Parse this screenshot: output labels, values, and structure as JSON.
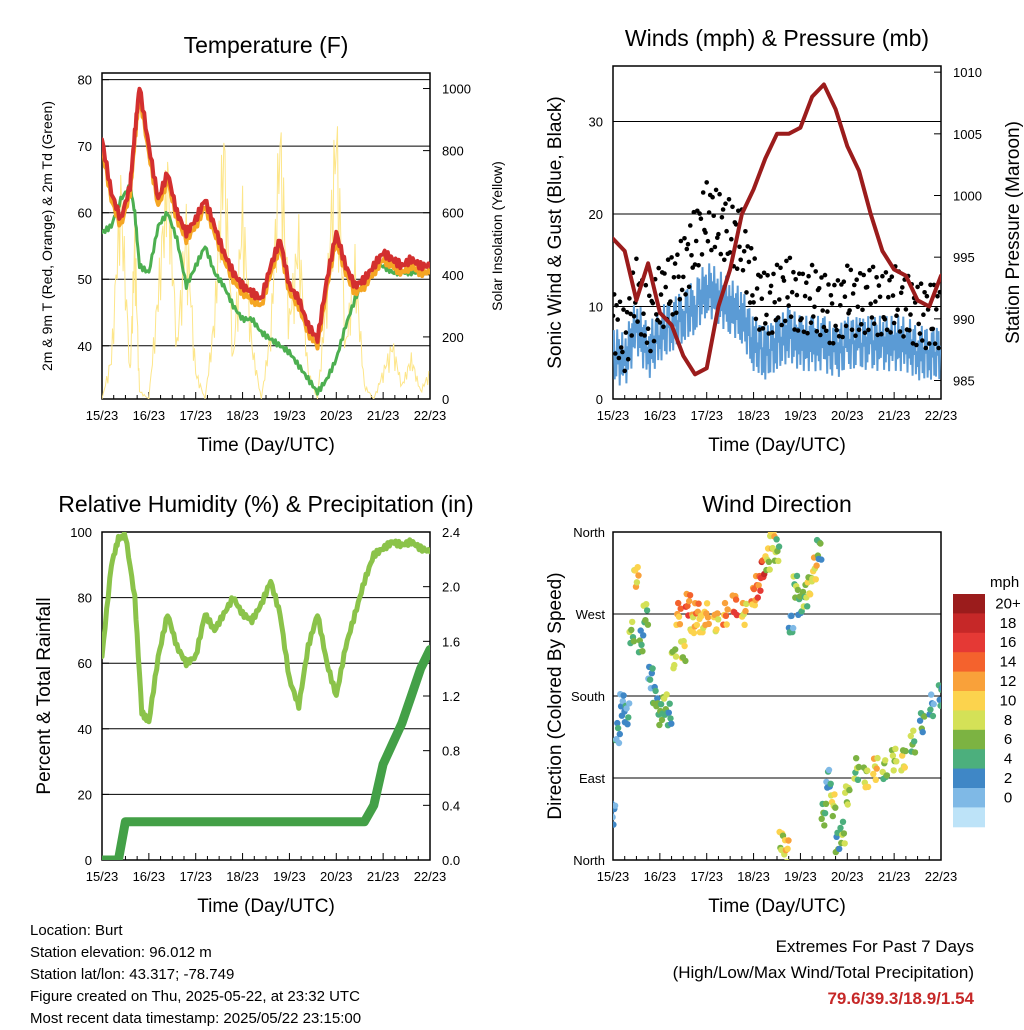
{
  "time_ticks": [
    "15/23",
    "16/23",
    "17/23",
    "18/23",
    "19/23",
    "20/23",
    "21/23",
    "22/23"
  ],
  "xlabel": "Time (Day/UTC)",
  "chart_data": [
    {
      "type": "line",
      "title": "Temperature (F)",
      "xlabel": "Time (Day/UTC)",
      "ylabel": "2m & 9m T (Red, Orange) & 2m Td (Green)",
      "ylabel_right": "Solar Insolation (Yellow)",
      "x": [
        15.0,
        15.2,
        15.4,
        15.6,
        15.7,
        15.8,
        16.0,
        16.2,
        16.4,
        16.6,
        16.8,
        17.0,
        17.2,
        17.4,
        17.6,
        17.8,
        18.0,
        18.2,
        18.4,
        18.6,
        18.8,
        19.0,
        19.2,
        19.4,
        19.6,
        19.8,
        20.0,
        20.2,
        20.4,
        20.6,
        20.8,
        21.0,
        21.2,
        21.4,
        21.6,
        21.8,
        22.0
      ],
      "ylim": [
        32,
        81
      ],
      "ylim_right": [
        0,
        1050
      ],
      "yticks": [
        40,
        50,
        60,
        70,
        80
      ],
      "yticks_right": [
        0,
        200,
        400,
        600,
        800,
        1000
      ],
      "grid": true,
      "series": [
        {
          "values": [
            71,
            63,
            59,
            64,
            72,
            79,
            70,
            62,
            66,
            60,
            57,
            59,
            62,
            58,
            54,
            51,
            49,
            48,
            47,
            52,
            56,
            49,
            47,
            43,
            41,
            50,
            57,
            52,
            49,
            50,
            52,
            54,
            53,
            52,
            53,
            52,
            52
          ],
          "color": "#d32f2f"
        },
        {
          "values": [
            70,
            62,
            58,
            63,
            71,
            78,
            69,
            61,
            65,
            59,
            56,
            58,
            61,
            57,
            53,
            50,
            48,
            47,
            46,
            51,
            55,
            48,
            46,
            42,
            40,
            49,
            56,
            51,
            48,
            49,
            51,
            53,
            52,
            51,
            52,
            51,
            51
          ],
          "color": "#f5a623"
        },
        {
          "values": [
            57,
            58,
            62,
            64,
            60,
            52,
            51,
            58,
            60,
            56,
            49,
            52,
            55,
            51,
            49,
            46,
            44,
            44,
            42,
            41,
            40,
            39,
            37,
            35,
            33,
            35,
            38,
            43,
            47,
            50,
            52,
            52,
            51,
            51,
            51,
            51,
            51
          ],
          "color": "#4caf50"
        },
        {
          "values": [
            0,
            150,
            780,
            100,
            600,
            30,
            0,
            400,
            850,
            200,
            650,
            100,
            0,
            300,
            950,
            150,
            700,
            200,
            0,
            250,
            980,
            300,
            600,
            100,
            0,
            400,
            1000,
            200,
            500,
            50,
            0,
            100,
            200,
            50,
            150,
            30,
            100
          ],
          "color": "#fde68a"
        }
      ]
    },
    {
      "type": "scatter",
      "title": "Winds (mph) & Pressure (mb)",
      "xlabel": "Time (Day/UTC)",
      "ylabel": "Sonic Wind & Gust (Blue, Black)",
      "ylabel_right": "Station Pressure (Maroon)",
      "x": [
        15.0,
        15.25,
        15.5,
        15.75,
        16.0,
        16.25,
        16.5,
        16.75,
        17.0,
        17.25,
        17.5,
        17.75,
        18.0,
        18.25,
        18.5,
        18.75,
        19.0,
        19.25,
        19.5,
        19.75,
        20.0,
        20.25,
        20.5,
        20.75,
        21.0,
        21.25,
        21.5,
        21.75,
        22.0
      ],
      "ylim": [
        0,
        36
      ],
      "ylim_right": [
        983.5,
        1010.5
      ],
      "yticks": [
        0,
        10,
        20,
        30
      ],
      "yticks_right": [
        985,
        990,
        995,
        1000,
        1005,
        1010
      ],
      "grid": true,
      "series": [
        {
          "values": [
            9,
            6,
            12,
            8,
            11,
            12,
            14,
            17,
            20,
            19,
            18,
            17,
            12,
            10,
            11,
            12,
            10,
            11,
            10,
            9,
            11,
            10,
            11,
            10,
            11,
            10,
            9,
            9,
            9
          ],
          "color": "#000000"
        },
        {
          "values": [
            5,
            4,
            8,
            5,
            7,
            8,
            9,
            10,
            12,
            11,
            10,
            9,
            6,
            5,
            6,
            7,
            6,
            6,
            6,
            5,
            6,
            6,
            6,
            6,
            6,
            6,
            5,
            5,
            5
          ],
          "color": "#5b9bd5"
        },
        {
          "values": [
            996.5,
            995.5,
            991.5,
            994.5,
            990.5,
            989.5,
            987.0,
            985.5,
            986.0,
            991.0,
            994.0,
            998.5,
            1000.5,
            1003.0,
            1005.0,
            1005.0,
            1005.5,
            1008.0,
            1009.0,
            1007.0,
            1004.0,
            1002.0,
            998.5,
            995.5,
            994.0,
            993.5,
            991.5,
            991.0,
            993.5
          ],
          "color": "#9b1c1c"
        }
      ]
    },
    {
      "type": "line",
      "title": "Relative Humidity (%) & Precipitation (in)",
      "xlabel": "Time (Day/UTC)",
      "ylabel": "Percent & Total Rainfall",
      "x": [
        15.0,
        15.2,
        15.35,
        15.5,
        15.7,
        15.85,
        16.0,
        16.2,
        16.4,
        16.6,
        16.8,
        17.0,
        17.2,
        17.4,
        17.6,
        17.8,
        18.0,
        18.2,
        18.4,
        18.6,
        18.8,
        19.0,
        19.2,
        19.4,
        19.6,
        19.8,
        20.0,
        20.2,
        20.4,
        20.6,
        20.8,
        21.0,
        21.2,
        21.4,
        21.6,
        21.8,
        22.0
      ],
      "ylim": [
        0,
        100
      ],
      "ylim_right": [
        0,
        2.4
      ],
      "yticks": [
        0,
        20,
        40,
        60,
        80,
        100
      ],
      "yticks_right": [
        0.0,
        0.4,
        0.8,
        1.2,
        1.6,
        2.0,
        2.4
      ],
      "grid": true,
      "series": [
        {
          "values": [
            62,
            90,
            98,
            99,
            80,
            45,
            42,
            62,
            75,
            65,
            60,
            62,
            75,
            70,
            75,
            80,
            75,
            73,
            78,
            85,
            75,
            55,
            47,
            65,
            75,
            60,
            50,
            65,
            75,
            85,
            93,
            95,
            97,
            96,
            97,
            95,
            94
          ],
          "color": "#8bc34a"
        },
        {
          "values": [
            0.0,
            0.0,
            0.0,
            0.28,
            0.28,
            0.28,
            0.28,
            0.28,
            0.28,
            0.28,
            0.28,
            0.28,
            0.28,
            0.28,
            0.28,
            0.28,
            0.28,
            0.28,
            0.28,
            0.28,
            0.28,
            0.28,
            0.28,
            0.28,
            0.28,
            0.28,
            0.28,
            0.28,
            0.28,
            0.28,
            0.4,
            0.7,
            0.85,
            1.0,
            1.2,
            1.4,
            1.54
          ],
          "color": "#43a047"
        }
      ]
    },
    {
      "type": "scatter",
      "title": "Wind Direction",
      "xlabel": "Time (Day/UTC)",
      "ylabel": "Direction (Colored By Speed)",
      "ytick_labels": [
        "North",
        "East",
        "South",
        "West",
        "North"
      ],
      "ytick_values": [
        0,
        90,
        180,
        270,
        360
      ],
      "ylim": [
        0,
        360
      ],
      "colorbar": {
        "title": "mph",
        "labels": [
          "20+",
          "18",
          "16",
          "14",
          "12",
          "10",
          "8",
          "6",
          "4",
          "2",
          "0"
        ],
        "colors": [
          "#9b1c1c",
          "#c62828",
          "#e53935",
          "#f4622d",
          "#f9a13a",
          "#fcd34d",
          "#d4e157",
          "#7cb342",
          "#4caf7d",
          "#3f87c6",
          "#7fb9e6",
          "#bde3f8"
        ]
      },
      "x": [
        15.0,
        15.1,
        15.2,
        15.3,
        15.4,
        15.5,
        15.6,
        15.7,
        15.8,
        15.9,
        16.0,
        16.1,
        16.2,
        16.3,
        16.4,
        16.5,
        16.6,
        16.7,
        16.8,
        16.9,
        17.0,
        17.2,
        17.4,
        17.6,
        17.8,
        18.0,
        18.1,
        18.2,
        18.3,
        18.4,
        18.5,
        18.6,
        18.7,
        18.8,
        18.9,
        19.0,
        19.1,
        19.2,
        19.3,
        19.4,
        19.5,
        19.6,
        19.7,
        19.8,
        19.9,
        20.0,
        20.2,
        20.4,
        20.6,
        20.8,
        21.0,
        21.2,
        21.4,
        21.6,
        21.8,
        22.0
      ],
      "direction": [
        50,
        140,
        170,
        160,
        250,
        310,
        240,
        270,
        200,
        180,
        160,
        170,
        160,
        220,
        270,
        230,
        280,
        260,
        270,
        260,
        270,
        260,
        270,
        280,
        270,
        290,
        300,
        320,
        330,
        350,
        340,
        20,
        10,
        260,
        300,
        280,
        290,
        300,
        320,
        340,
        50,
        90,
        60,
        20,
        30,
        70,
        100,
        90,
        100,
        100,
        110,
        110,
        130,
        150,
        170,
        180
      ],
      "speed": [
        3,
        4,
        3,
        4,
        8,
        12,
        6,
        8,
        4,
        6,
        7,
        8,
        5,
        9,
        14,
        10,
        16,
        12,
        14,
        11,
        13,
        12,
        14,
        16,
        12,
        14,
        16,
        18,
        10,
        12,
        8,
        10,
        12,
        4,
        8,
        6,
        8,
        10,
        12,
        6,
        7,
        4,
        10,
        6,
        8,
        9,
        8,
        10,
        12,
        8,
        9,
        10,
        8,
        6,
        4,
        5
      ]
    }
  ],
  "info": {
    "location": "Location: Burt",
    "elevation": "Station elevation: 96.012 m",
    "latlon": "Station lat/lon: 43.317; -78.749",
    "created": "Figure created on Thu, 2025-05-22, at 23:32 UTC",
    "timestamp": "Most recent data timestamp: 2025/05/22 23:15:00"
  },
  "extremes": {
    "title": "Extremes For Past 7 Days",
    "subtitle": "(High/Low/Max Wind/Total Precipitation)",
    "values": "79.6/39.3/18.9/1.54"
  }
}
